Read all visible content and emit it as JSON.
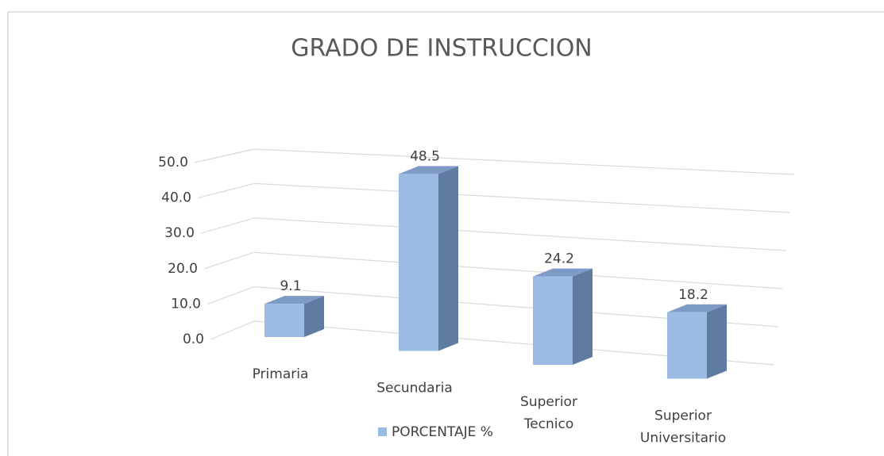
{
  "chart_data": {
    "type": "bar3d",
    "title": "GRADO DE INSTRUCCION",
    "categories": [
      "Primaria",
      "Secundaria",
      "Superior Tecnico",
      "Superior Universitario"
    ],
    "series": [
      {
        "name": "PORCENTAJE %",
        "color": "#9bbbe3",
        "values": [
          9.1,
          48.5,
          24.2,
          18.2
        ]
      }
    ],
    "ylim": [
      0,
      50
    ],
    "yticks": [
      {
        "value": 0,
        "label": "0.0"
      },
      {
        "value": 10,
        "label": "10.0"
      },
      {
        "value": 20,
        "label": "20.0"
      },
      {
        "value": 30,
        "label": "30.0"
      },
      {
        "value": 40,
        "label": "40.0"
      },
      {
        "value": 50,
        "label": "50.0"
      }
    ],
    "grid": true,
    "legend": "bottom"
  }
}
